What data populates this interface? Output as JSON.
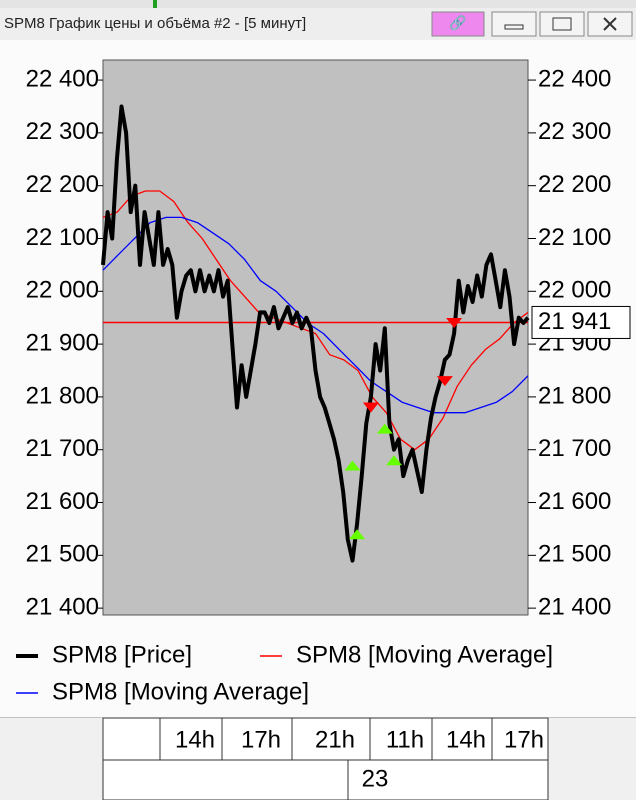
{
  "window": {
    "title": "SPM8 График цены и объёма #2 - [5 минут]"
  },
  "chart_data": {
    "type": "line",
    "ylim": [
      21387,
      22438
    ],
    "yticks": [
      {
        "value": 22400,
        "label": "22 400"
      },
      {
        "value": 22300,
        "label": "22 300"
      },
      {
        "value": 22200,
        "label": "22 200"
      },
      {
        "value": 22100,
        "label": "22 100"
      },
      {
        "value": 22000,
        "label": "22 000"
      },
      {
        "value": 21900,
        "label": "21 900"
      },
      {
        "value": 21800,
        "label": "21 800"
      },
      {
        "value": 21700,
        "label": "21 700"
      },
      {
        "value": 21600,
        "label": "21 600"
      },
      {
        "value": 21500,
        "label": "21 500"
      },
      {
        "value": 21400,
        "label": "21 400"
      }
    ],
    "series": [
      {
        "name": "SPM8 [Price]",
        "color": "#000000",
        "values": [
          22050,
          22150,
          22100,
          22250,
          22350,
          22300,
          22150,
          22200,
          22050,
          22150,
          22100,
          22050,
          22150,
          22050,
          22080,
          22050,
          21950,
          22000,
          22030,
          22040,
          22000,
          22040,
          22000,
          22030,
          22000,
          22040,
          21990,
          22020,
          21900,
          21780,
          21860,
          21800,
          21850,
          21900,
          21960,
          21960,
          21940,
          21970,
          21930,
          21950,
          21970,
          21940,
          21960,
          21930,
          21950,
          21930,
          21850,
          21800,
          21780,
          21750,
          21720,
          21680,
          21620,
          21530,
          21490,
          21560,
          21650,
          21750,
          21800,
          21900,
          21850,
          21930,
          21750,
          21700,
          21720,
          21650,
          21680,
          21700,
          21660,
          21620,
          21700,
          21760,
          21800,
          21830,
          21870,
          21880,
          21920,
          22020,
          21960,
          22010,
          21980,
          22030,
          21990,
          22050,
          22070,
          22020,
          21970,
          22040,
          21990,
          21900,
          21950,
          21940,
          21950
        ]
      },
      {
        "name": "SPM8 [Moving Average]",
        "color": "#ff0000",
        "values": [
          22140,
          22150,
          22180,
          22190,
          22190,
          22170,
          22130,
          22100,
          22060,
          22020,
          21990,
          21960,
          21950,
          21940,
          21930,
          21920,
          21880,
          21870,
          21850,
          21800,
          21770,
          21720,
          21700,
          21720,
          21760,
          21820,
          21860,
          21890,
          21910,
          21940,
          21960
        ]
      },
      {
        "name": "SPM8 [Moving Average]",
        "color": "#0000ff",
        "values": [
          22040,
          22070,
          22100,
          22130,
          22140,
          22140,
          22130,
          22110,
          22090,
          22060,
          22020,
          22000,
          21970,
          21940,
          21920,
          21890,
          21860,
          21830,
          21810,
          21790,
          21780,
          21770,
          21770,
          21770,
          21780,
          21790,
          21810,
          21840
        ]
      }
    ],
    "buy_signals": {
      "color": "#66ff00",
      "x": [
        54,
        55,
        61,
        63
      ],
      "values": [
        21670,
        21540,
        21740,
        21680
      ]
    },
    "sell_signals": {
      "color": "#ff0000",
      "x": [
        58,
        74,
        76
      ],
      "values": [
        21780,
        21830,
        21940
      ]
    },
    "last_price": {
      "value": 21941,
      "value_label": "21 941",
      "color": "#ff0000"
    },
    "time_labels": [
      "14h",
      "17h",
      "21h",
      "11h",
      "14h",
      "17h"
    ],
    "day_label": "23"
  }
}
